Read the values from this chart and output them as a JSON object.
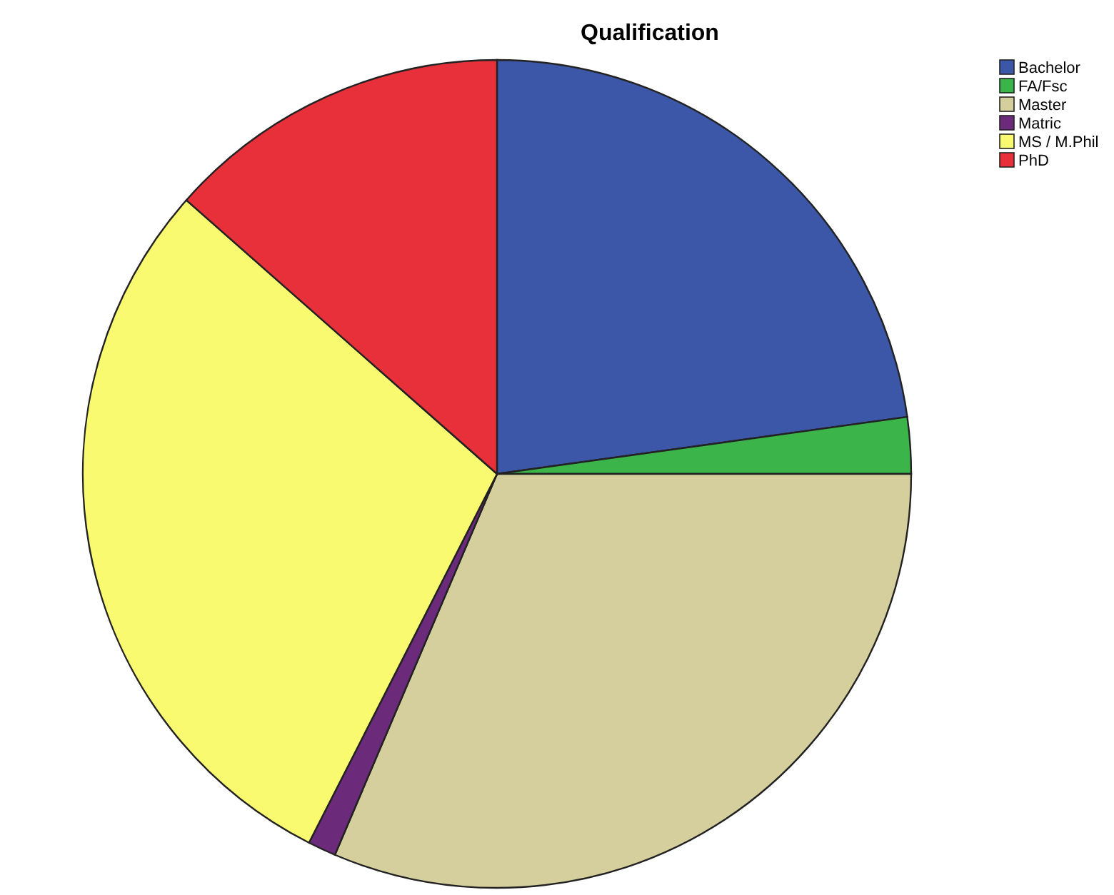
{
  "chart_data": {
    "type": "pie",
    "title": "Qualification",
    "categories": [
      "Bachelor",
      "FA/Fsc",
      "Master",
      "Matric",
      "MS / M.Phil",
      "PhD"
    ],
    "values": [
      22.8,
      2.2,
      31.4,
      1.1,
      29,
      13.5
    ],
    "colors": [
      "#3d57a8",
      "#3bb54a",
      "#d4cf9c",
      "#6b2a7a",
      "#fafa70",
      "#e8303a"
    ],
    "legend": "top right"
  }
}
